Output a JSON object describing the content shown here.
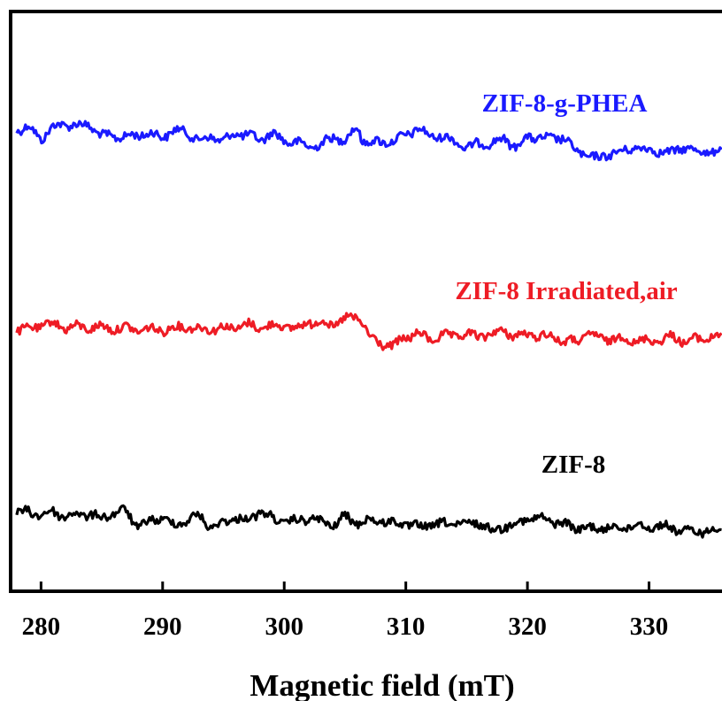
{
  "chart_data": {
    "type": "line",
    "xlabel": "Magnetic field (mT)",
    "xlim": [
      277.5,
      336
    ],
    "xticks": [
      "280",
      "290",
      "300",
      "310",
      "320",
      "330"
    ],
    "ylabel": "",
    "yticks": [],
    "legend": "none",
    "grid": false,
    "series": [
      {
        "name": "ZIF-8-g-PHEA",
        "color": "#1a1aff",
        "offset": 148,
        "points": [
          [
            278,
            0
          ],
          [
            279,
            0.3
          ],
          [
            280,
            -0.8
          ],
          [
            281,
            0.3
          ],
          [
            282,
            0.5
          ],
          [
            284,
            0.4
          ],
          [
            285,
            -0.5
          ],
          [
            287,
            -0.6
          ],
          [
            288,
            -0.4
          ],
          [
            289,
            -0.3
          ],
          [
            290,
            -0.6
          ],
          [
            291,
            0
          ],
          [
            292,
            -0.2
          ],
          [
            293,
            -0.9
          ],
          [
            294,
            -0.6
          ],
          [
            295,
            -0.9
          ],
          [
            296,
            -0.3
          ],
          [
            297,
            -0.4
          ],
          [
            298,
            -0.9
          ],
          [
            299,
            -0.2
          ],
          [
            300,
            -1.0
          ],
          [
            301,
            -1.0
          ],
          [
            302,
            -1.5
          ],
          [
            303,
            -1.2
          ],
          [
            304,
            -0.7
          ],
          [
            305,
            -0.8
          ],
          [
            306,
            0.2
          ],
          [
            306.5,
            -1.0
          ],
          [
            307,
            -1.0
          ],
          [
            308,
            -1.1
          ],
          [
            309,
            -0.9
          ],
          [
            310,
            -0.5
          ],
          [
            311,
            0.2
          ],
          [
            312,
            -0.6
          ],
          [
            313,
            -0.5
          ],
          [
            314,
            -1.0
          ],
          [
            315,
            -1.5
          ],
          [
            316,
            -1.2
          ],
          [
            317,
            -1.1
          ],
          [
            318,
            -0.8
          ],
          [
            319,
            -1.4
          ],
          [
            320,
            -0.7
          ],
          [
            321,
            -0.6
          ],
          [
            322,
            -0.8
          ],
          [
            323,
            -0.6
          ],
          [
            324,
            -1.9
          ],
          [
            325,
            -2.2
          ],
          [
            326,
            -2.5
          ],
          [
            327,
            -1.9
          ],
          [
            328,
            -1.9
          ],
          [
            329,
            -1.4
          ],
          [
            330,
            -1.8
          ],
          [
            331,
            -1.8
          ],
          [
            332,
            -2.0
          ],
          [
            333,
            -1.4
          ],
          [
            334,
            -1.9
          ],
          [
            335,
            -1.9
          ],
          [
            336,
            -1.7
          ]
        ]
      },
      {
        "name": "ZIF-8 Irradiated,air",
        "color": "#ee1c25",
        "offset": 30,
        "points": [
          [
            278,
            0
          ],
          [
            279,
            0.1
          ],
          [
            280,
            0.4
          ],
          [
            281,
            0.6
          ],
          [
            282,
            0.2
          ],
          [
            283,
            0.3
          ],
          [
            284,
            0.2
          ],
          [
            285,
            0.3
          ],
          [
            286,
            0.1
          ],
          [
            287,
            0.2
          ],
          [
            288,
            0
          ],
          [
            289,
            0.1
          ],
          [
            290,
            0
          ],
          [
            291,
            0.2
          ],
          [
            292,
            0.3
          ],
          [
            293,
            0.1
          ],
          [
            294,
            0.1
          ],
          [
            295,
            0.2
          ],
          [
            296,
            0.2
          ],
          [
            297,
            0.5
          ],
          [
            298,
            0.2
          ],
          [
            299,
            0.4
          ],
          [
            300,
            0.4
          ],
          [
            301,
            0.1
          ],
          [
            302,
            0.7
          ],
          [
            303,
            0.7
          ],
          [
            304,
            0.4
          ],
          [
            305,
            1.0
          ],
          [
            306,
            1.1
          ],
          [
            306.5,
            0.6
          ],
          [
            307,
            -0.6
          ],
          [
            308,
            -1.2
          ],
          [
            309,
            -1.4
          ],
          [
            310,
            -0.6
          ],
          [
            311,
            -0.3
          ],
          [
            312,
            -0.8
          ],
          [
            313,
            -0.5
          ],
          [
            314,
            -0.5
          ],
          [
            315,
            -0.4
          ],
          [
            316,
            -0.5
          ],
          [
            317,
            -0.4
          ],
          [
            318,
            0
          ],
          [
            319,
            -0.6
          ],
          [
            320,
            -0.3
          ],
          [
            321,
            -0.6
          ],
          [
            322,
            -0.4
          ],
          [
            323,
            -1.1
          ],
          [
            324,
            -0.9
          ],
          [
            325,
            -0.4
          ],
          [
            326,
            -0.6
          ],
          [
            327,
            -0.9
          ],
          [
            328,
            -0.6
          ],
          [
            329,
            -1.1
          ],
          [
            330,
            -0.8
          ],
          [
            331,
            -0.9
          ],
          [
            332,
            -0.5
          ],
          [
            333,
            -1.1
          ],
          [
            334,
            -0.7
          ],
          [
            335,
            -0.7
          ],
          [
            336,
            -0.4
          ]
        ]
      },
      {
        "name": "ZIF-8",
        "color": "#000000",
        "offset": -90,
        "points": [
          [
            278,
            0
          ],
          [
            279,
            0.2
          ],
          [
            280,
            -0.2
          ],
          [
            281,
            0.2
          ],
          [
            282,
            -0.4
          ],
          [
            283,
            0
          ],
          [
            284,
            -0.2
          ],
          [
            285,
            -0.4
          ],
          [
            286,
            0
          ],
          [
            287,
            0.3
          ],
          [
            288,
            -1.5
          ],
          [
            289,
            -0.7
          ],
          [
            290,
            -0.5
          ],
          [
            291,
            -1.2
          ],
          [
            292,
            -0.7
          ],
          [
            293,
            -0.2
          ],
          [
            294,
            -1.5
          ],
          [
            295,
            -0.9
          ],
          [
            296,
            -0.5
          ],
          [
            297,
            -0.7
          ],
          [
            298,
            0.2
          ],
          [
            299,
            -0.5
          ],
          [
            300,
            -0.9
          ],
          [
            301,
            -0.8
          ],
          [
            302,
            -0.5
          ],
          [
            303,
            -0.8
          ],
          [
            304,
            -1.3
          ],
          [
            305,
            -0.3
          ],
          [
            306,
            -1.0
          ],
          [
            307,
            -0.7
          ],
          [
            308,
            -0.8
          ],
          [
            309,
            -1.0
          ],
          [
            310,
            -1.1
          ],
          [
            311,
            -1.4
          ],
          [
            312,
            -1.2
          ],
          [
            313,
            -1.1
          ],
          [
            314,
            -1.0
          ],
          [
            315,
            -1.2
          ],
          [
            316,
            -0.9
          ],
          [
            317,
            -1.8
          ],
          [
            318,
            -1.4
          ],
          [
            319,
            -1.0
          ],
          [
            320,
            -0.6
          ],
          [
            321,
            -0.5
          ],
          [
            322,
            -0.8
          ],
          [
            323,
            -1.1
          ],
          [
            324,
            -1.5
          ],
          [
            325,
            -1.5
          ],
          [
            326,
            -1.6
          ],
          [
            327,
            -1.4
          ],
          [
            328,
            -1.5
          ],
          [
            329,
            -1.2
          ],
          [
            330,
            -1.4
          ],
          [
            331,
            -1.3
          ],
          [
            332,
            -1.5
          ],
          [
            333,
            -1.9
          ],
          [
            334,
            -1.8
          ],
          [
            335,
            -1.9
          ],
          [
            336,
            -1.4
          ]
        ]
      }
    ]
  }
}
